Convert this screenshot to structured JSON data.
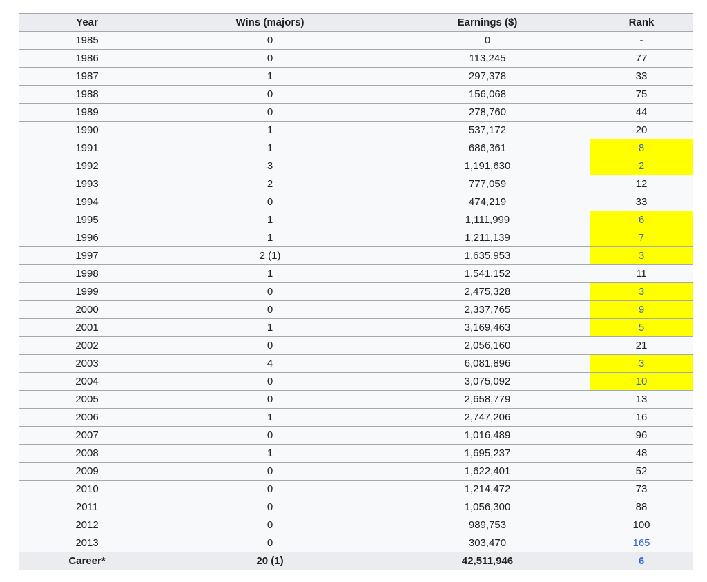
{
  "table": {
    "headers": [
      "Year",
      "Wins (majors)",
      "Earnings ($)",
      "Rank"
    ],
    "rows": [
      {
        "year": "1985",
        "wins": "0",
        "earnings": "0",
        "rank": "-",
        "highlight": false,
        "link": false
      },
      {
        "year": "1986",
        "wins": "0",
        "earnings": "113,245",
        "rank": "77",
        "highlight": false,
        "link": false
      },
      {
        "year": "1987",
        "wins": "1",
        "earnings": "297,378",
        "rank": "33",
        "highlight": false,
        "link": false
      },
      {
        "year": "1988",
        "wins": "0",
        "earnings": "156,068",
        "rank": "75",
        "highlight": false,
        "link": false
      },
      {
        "year": "1989",
        "wins": "0",
        "earnings": "278,760",
        "rank": "44",
        "highlight": false,
        "link": false
      },
      {
        "year": "1990",
        "wins": "1",
        "earnings": "537,172",
        "rank": "20",
        "highlight": false,
        "link": false
      },
      {
        "year": "1991",
        "wins": "1",
        "earnings": "686,361",
        "rank": "8",
        "highlight": true,
        "link": true
      },
      {
        "year": "1992",
        "wins": "3",
        "earnings": "1,191,630",
        "rank": "2",
        "highlight": true,
        "link": true
      },
      {
        "year": "1993",
        "wins": "2",
        "earnings": "777,059",
        "rank": "12",
        "highlight": false,
        "link": false
      },
      {
        "year": "1994",
        "wins": "0",
        "earnings": "474,219",
        "rank": "33",
        "highlight": false,
        "link": false
      },
      {
        "year": "1995",
        "wins": "1",
        "earnings": "1,111,999",
        "rank": "6",
        "highlight": true,
        "link": true
      },
      {
        "year": "1996",
        "wins": "1",
        "earnings": "1,211,139",
        "rank": "7",
        "highlight": true,
        "link": true
      },
      {
        "year": "1997",
        "wins": "2 (1)",
        "earnings": "1,635,953",
        "rank": "3",
        "highlight": true,
        "link": true
      },
      {
        "year": "1998",
        "wins": "1",
        "earnings": "1,541,152",
        "rank": "11",
        "highlight": false,
        "link": false
      },
      {
        "year": "1999",
        "wins": "0",
        "earnings": "2,475,328",
        "rank": "3",
        "highlight": true,
        "link": true
      },
      {
        "year": "2000",
        "wins": "0",
        "earnings": "2,337,765",
        "rank": "9",
        "highlight": true,
        "link": true
      },
      {
        "year": "2001",
        "wins": "1",
        "earnings": "3,169,463",
        "rank": "5",
        "highlight": true,
        "link": true
      },
      {
        "year": "2002",
        "wins": "0",
        "earnings": "2,056,160",
        "rank": "21",
        "highlight": false,
        "link": false
      },
      {
        "year": "2003",
        "wins": "4",
        "earnings": "6,081,896",
        "rank": "3",
        "highlight": true,
        "link": true
      },
      {
        "year": "2004",
        "wins": "0",
        "earnings": "3,075,092",
        "rank": "10",
        "highlight": true,
        "link": true
      },
      {
        "year": "2005",
        "wins": "0",
        "earnings": "2,658,779",
        "rank": "13",
        "highlight": false,
        "link": false
      },
      {
        "year": "2006",
        "wins": "1",
        "earnings": "2,747,206",
        "rank": "16",
        "highlight": false,
        "link": false
      },
      {
        "year": "2007",
        "wins": "0",
        "earnings": "1,016,489",
        "rank": "96",
        "highlight": false,
        "link": false
      },
      {
        "year": "2008",
        "wins": "1",
        "earnings": "1,695,237",
        "rank": "48",
        "highlight": false,
        "link": false
      },
      {
        "year": "2009",
        "wins": "0",
        "earnings": "1,622,401",
        "rank": "52",
        "highlight": false,
        "link": false
      },
      {
        "year": "2010",
        "wins": "0",
        "earnings": "1,214,472",
        "rank": "73",
        "highlight": false,
        "link": false
      },
      {
        "year": "2011",
        "wins": "0",
        "earnings": "1,056,300",
        "rank": "88",
        "highlight": false,
        "link": false
      },
      {
        "year": "2012",
        "wins": "0",
        "earnings": "989,753",
        "rank": "100",
        "highlight": false,
        "link": false
      },
      {
        "year": "2013",
        "wins": "0",
        "earnings": "303,470",
        "rank": "165",
        "highlight": false,
        "link": true
      }
    ],
    "footer": {
      "year": "Career*",
      "wins": "20 (1)",
      "earnings": "42,511,946",
      "rank": "6",
      "highlight": true,
      "link": true
    }
  },
  "colors": {
    "highlight": "#ffff00",
    "link": "#3366cc",
    "header_bg": "#eaecf0",
    "cell_bg": "#f8f9fa",
    "border": "#a2a9b1"
  }
}
